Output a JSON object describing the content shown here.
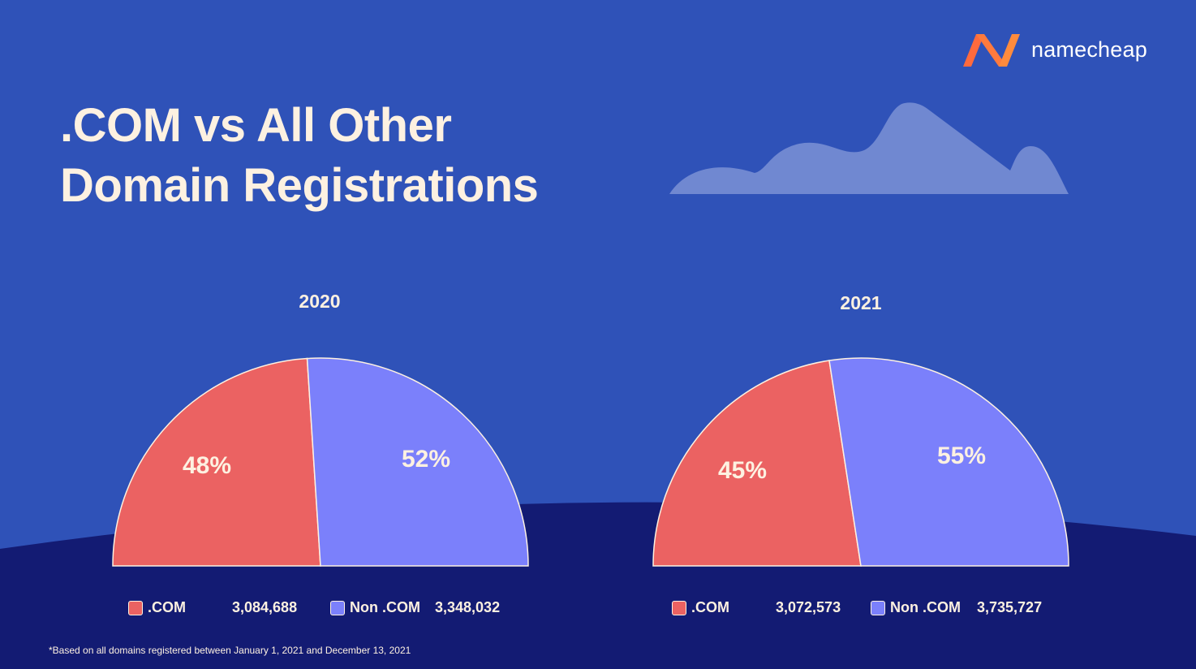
{
  "brand": {
    "name": "namecheap",
    "logo_colors": [
      "#ff6a3d",
      "#ff8b3d"
    ]
  },
  "title": {
    "line1": ".COM vs All Other",
    "line2": "Domain Registrations"
  },
  "colors": {
    "background": "#2f52b8",
    "ground": "#131b73",
    "cloud": "#7088d1",
    "com": "#eb6262",
    "non_com": "#7b80fb",
    "text": "#fdf1e1"
  },
  "chart_data": [
    {
      "type": "pie",
      "title": "2020",
      "series": [
        {
          "name": ".COM",
          "value": 3084688,
          "percent_label": "48%",
          "color": "#eb6262"
        },
        {
          "name": "Non .COM",
          "value": 3348032,
          "percent_label": "52%",
          "color": "#7b80fb"
        }
      ],
      "legend_values": [
        "3,084,688",
        "3,348,032"
      ]
    },
    {
      "type": "pie",
      "title": "2021",
      "series": [
        {
          "name": ".COM",
          "value": 3072573,
          "percent_label": "45%",
          "color": "#eb6262"
        },
        {
          "name": "Non .COM",
          "value": 3735727,
          "percent_label": "55%",
          "color": "#7b80fb"
        }
      ],
      "legend_values": [
        "3,072,573",
        "3,735,727"
      ]
    }
  ],
  "footnote": "*Based on all domains registered between January 1, 2021 and December 13, 2021"
}
